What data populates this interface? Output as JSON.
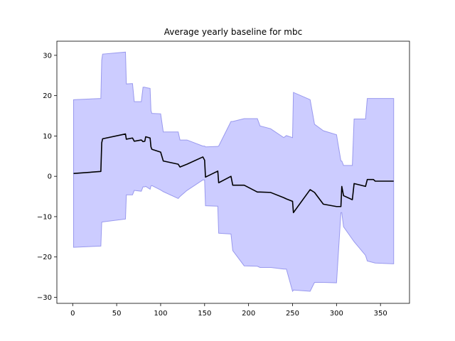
{
  "chart_data": {
    "type": "area",
    "title": "Average yearly baseline for mbc",
    "xlabel": "",
    "ylabel": "",
    "xlim": [
      -18,
      383
    ],
    "ylim": [
      -31.5,
      33.5
    ],
    "xticks": [
      0,
      50,
      100,
      150,
      200,
      250,
      300,
      350
    ],
    "yticks": [
      -30,
      -20,
      -10,
      0,
      10,
      20,
      30
    ],
    "grid": false,
    "colors": {
      "line": "#000000",
      "band_fill": "#ccccff",
      "band_edge": "#9999ee"
    },
    "series": [
      {
        "x": [
          1,
          32,
          33,
          34,
          60,
          61,
          68,
          70,
          78,
          80,
          82,
          83,
          88,
          89,
          90,
          100,
          103,
          120,
          122,
          130,
          148,
          150,
          151,
          165,
          166,
          180,
          182,
          195,
          210,
          213,
          225,
          240,
          243,
          250,
          251,
          270,
          275,
          285,
          300,
          305,
          306,
          308,
          318,
          320,
          333,
          335,
          342,
          344,
          365
        ],
        "mean": [
          0.7,
          1.2,
          8.3,
          9.3,
          10.5,
          9.2,
          9.5,
          8.7,
          9.0,
          8.6,
          8.7,
          9.8,
          9.5,
          7.3,
          6.7,
          6.0,
          3.8,
          3.0,
          2.3,
          3.0,
          4.8,
          4.0,
          -0.2,
          1.3,
          -1.6,
          0.0,
          -2.2,
          -2.2,
          -3.9,
          -3.9,
          -4.0,
          -5.3,
          -5.6,
          -6.2,
          -9.0,
          -3.3,
          -4.0,
          -6.9,
          -7.5,
          -7.5,
          -2.5,
          -4.8,
          -5.8,
          -1.8,
          -2.5,
          -0.8,
          -0.8,
          -1.2,
          -1.2
        ],
        "upper": [
          19.0,
          19.3,
          28.8,
          30.3,
          30.8,
          22.9,
          23.0,
          18.5,
          18.5,
          22.1,
          22.1,
          22.0,
          21.8,
          16.3,
          15.6,
          15.5,
          11.0,
          11.0,
          9.0,
          9.0,
          7.5,
          7.5,
          7.3,
          7.4,
          7.5,
          13.6,
          13.6,
          14.3,
          14.3,
          12.5,
          11.8,
          9.6,
          10.1,
          9.6,
          20.8,
          19.0,
          12.9,
          11.3,
          10.3,
          3.8,
          3.8,
          2.7,
          2.7,
          14.2,
          14.2,
          19.3,
          19.3,
          19.3,
          19.3
        ],
        "lower": [
          -17.6,
          -17.3,
          -11.4,
          -11.3,
          -10.6,
          -4.6,
          -4.6,
          -3.5,
          -3.7,
          -2.6,
          -2.6,
          -2.5,
          -3.2,
          -2.4,
          -2.3,
          -3.4,
          -3.8,
          -5.5,
          -5.0,
          -3.5,
          -0.9,
          -0.9,
          -7.3,
          -7.4,
          -14.1,
          -14.3,
          -18.4,
          -22.2,
          -22.3,
          -22.6,
          -22.6,
          -23.0,
          -23.0,
          -28.5,
          -28.2,
          -28.5,
          -26.3,
          -26.3,
          -26.4,
          -9.0,
          -9.0,
          -12.5,
          -15.6,
          -16.2,
          -19.6,
          -21.0,
          -21.4,
          -21.5,
          -21.7
        ]
      }
    ]
  }
}
